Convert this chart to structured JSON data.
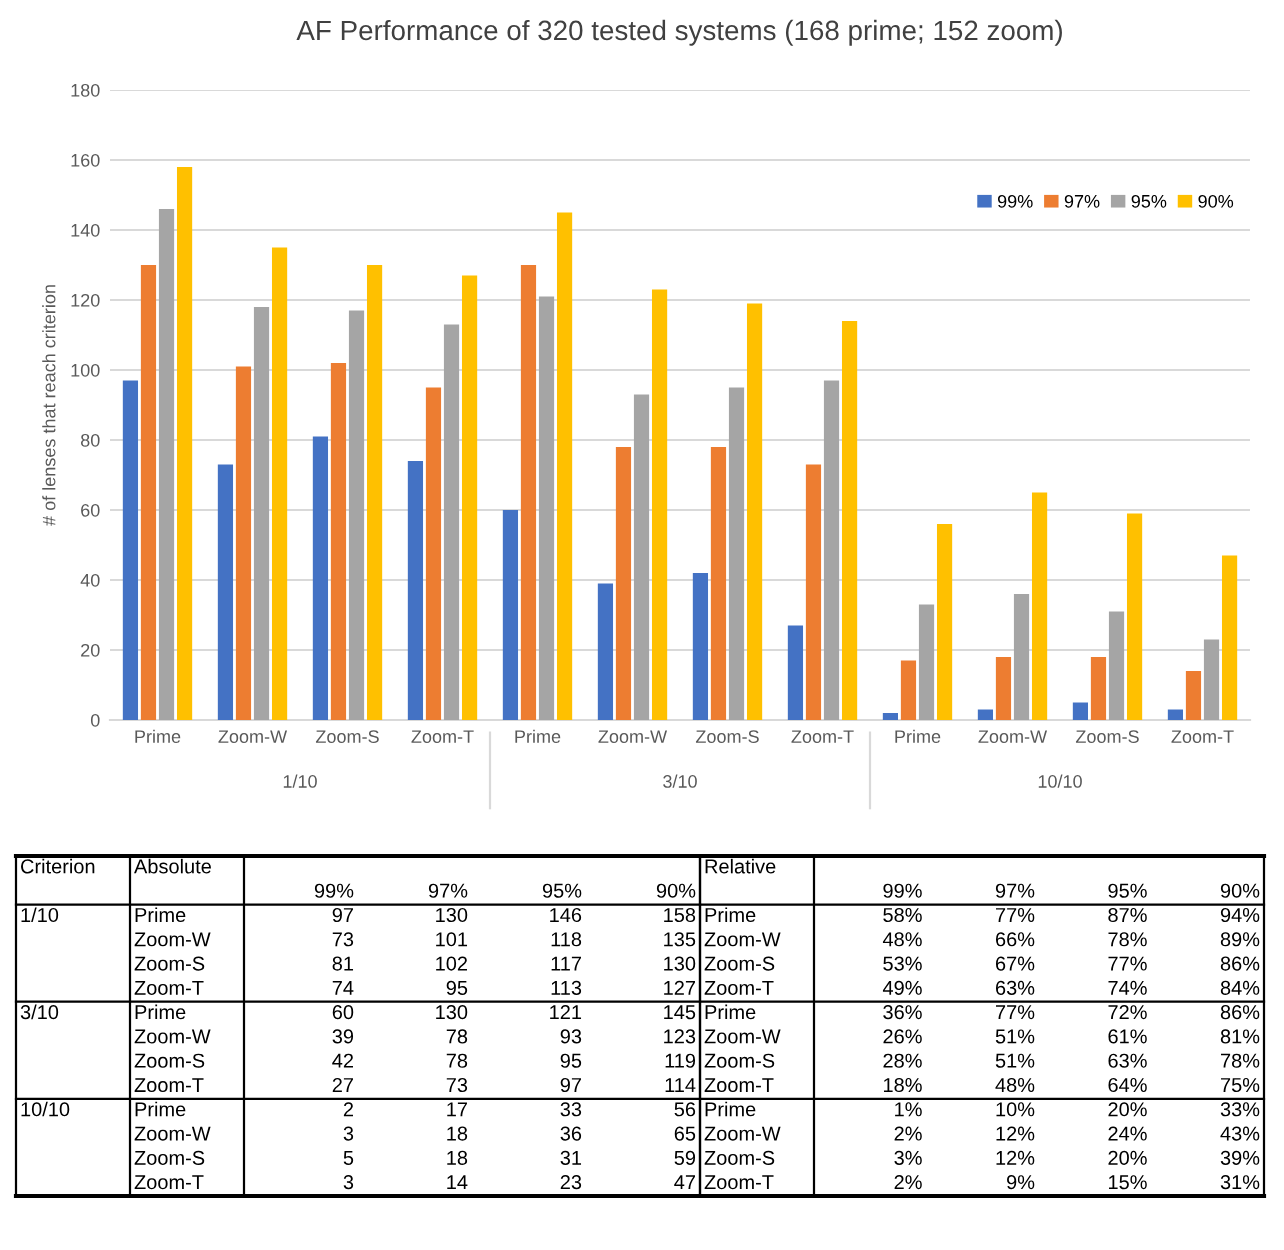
{
  "chart_data": [
    {
      "type": "bar",
      "title": "AF Performance of 320 tested systems (168 prime; 152 zoom)",
      "ylabel": "# of lenses that reach criterion",
      "categories": [
        "Prime",
        "Zoom-W",
        "Zoom-S",
        "Zoom-T",
        "Prime",
        "Zoom-W",
        "Zoom-S",
        "Zoom-T",
        "Prime",
        "Zoom-W",
        "Zoom-S",
        "Zoom-T"
      ],
      "series": [
        {
          "name": "99%",
          "color": "#4472c4",
          "values": [
            97,
            73,
            81,
            74,
            60,
            39,
            42,
            27,
            2,
            3,
            5,
            3
          ]
        },
        {
          "name": "97%",
          "color": "#ed7d31",
          "values": [
            130,
            101,
            102,
            95,
            130,
            78,
            78,
            73,
            17,
            18,
            18,
            14
          ]
        },
        {
          "name": "95%",
          "color": "#a5a5a5",
          "values": [
            146,
            118,
            117,
            113,
            121,
            93,
            95,
            97,
            33,
            36,
            31,
            23
          ]
        },
        {
          "name": "90%",
          "color": "#ffc000",
          "values": [
            158,
            135,
            130,
            127,
            145,
            123,
            119,
            114,
            56,
            65,
            59,
            47
          ]
        }
      ],
      "ylim": [
        0,
        180
      ],
      "yticks": [
        0,
        20,
        40,
        60,
        80,
        100,
        120,
        140,
        160,
        180
      ],
      "grid": "y",
      "legend": "top right",
      "annotations": [
        "1/10",
        "3/10",
        "10/10"
      ]
    },
    {
      "type": "other",
      "annotations": [
        "Criterion",
        "Absolute"
      ],
      "categories": [
        "99%",
        "97%",
        "95%",
        "90%"
      ],
      "y_categories": [
        "1/10",
        null,
        null,
        null,
        "3/10",
        null,
        null,
        null,
        "10/10",
        null,
        null,
        null
      ],
      "y2_categories": [
        "Prime",
        "Zoom-W",
        "Zoom-S",
        "Zoom-T",
        "Prime",
        "Zoom-W",
        "Zoom-S",
        "Zoom-T",
        "Prime",
        "Zoom-W",
        "Zoom-S",
        "Zoom-T"
      ],
      "cell_labels": [
        [
          "97",
          "130",
          "146",
          "158"
        ],
        [
          "73",
          "101",
          "118",
          "135"
        ],
        [
          "81",
          "102",
          "117",
          "130"
        ],
        [
          "74",
          "95",
          "113",
          "127"
        ],
        [
          "60",
          "130",
          "121",
          "145"
        ],
        [
          "39",
          "78",
          "93",
          "123"
        ],
        [
          "42",
          "78",
          "95",
          "119"
        ],
        [
          "27",
          "73",
          "97",
          "114"
        ],
        [
          "2",
          "17",
          "33",
          "56"
        ],
        [
          "3",
          "18",
          "36",
          "65"
        ],
        [
          "5",
          "18",
          "31",
          "59"
        ],
        [
          "3",
          "14",
          "23",
          "47"
        ]
      ]
    },
    {
      "type": "other",
      "annotations": [
        "Relative"
      ],
      "categories": [
        "99%",
        "97%",
        "95%",
        "90%"
      ],
      "y_categories": [
        "Prime",
        "Zoom-W",
        "Zoom-S",
        "Zoom-T",
        "Prime",
        "Zoom-W",
        "Zoom-S",
        "Zoom-T",
        "Prime",
        "Zoom-W",
        "Zoom-S",
        "Zoom-T"
      ],
      "cell_labels": [
        [
          "58%",
          "77%",
          "87%",
          "94%"
        ],
        [
          "48%",
          "66%",
          "78%",
          "89%"
        ],
        [
          "53%",
          "67%",
          "77%",
          "86%"
        ],
        [
          "49%",
          "63%",
          "74%",
          "84%"
        ],
        [
          "36%",
          "77%",
          "72%",
          "86%"
        ],
        [
          "26%",
          "51%",
          "61%",
          "81%"
        ],
        [
          "28%",
          "51%",
          "63%",
          "78%"
        ],
        [
          "18%",
          "48%",
          "64%",
          "75%"
        ],
        [
          "1%",
          "10%",
          "20%",
          "33%"
        ],
        [
          "2%",
          "12%",
          "24%",
          "43%"
        ],
        [
          "3%",
          "12%",
          "20%",
          "39%"
        ],
        [
          "2%",
          "9%",
          "15%",
          "31%"
        ]
      ]
    }
  ]
}
